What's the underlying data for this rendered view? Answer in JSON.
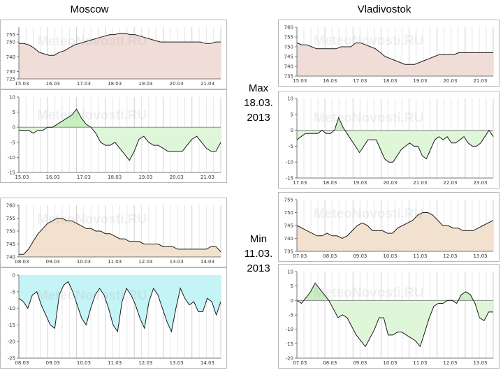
{
  "header": {
    "left_city": "Moscow",
    "right_city": "Vladivostok"
  },
  "labels": {
    "max_title": "Max",
    "max_date": "18.03.",
    "max_year": "2013",
    "min_title": "Min",
    "min_date": "11.03.",
    "min_year": "2013"
  },
  "watermark": "MeteoNovosti.RU",
  "colors": {
    "pressure_fill": "#f1ddd8",
    "pressure_fill_min": "#f3e1cf",
    "temp_pos": "#c8f0c0",
    "temp_neg": "#dff6d9",
    "temp_cold": "#c5f4f6",
    "line": "#1a1a1a"
  },
  "chart_data": [
    {
      "id": "moscow-max-pressure",
      "type": "area",
      "ylim": [
        725,
        760
      ],
      "yticks": [
        725,
        730,
        740,
        750,
        755
      ],
      "ytick_labels": [
        "725",
        "730",
        "740",
        "750",
        "755"
      ],
      "xlabels": [
        "15.03",
        "16.03",
        "17.03",
        "18.03",
        "19.03",
        "20.03",
        "21.03"
      ],
      "values": [
        749,
        749,
        748,
        746,
        743,
        742,
        741,
        741,
        743,
        744,
        746,
        748,
        749,
        750,
        751,
        752,
        753,
        754,
        755,
        755,
        756,
        756,
        755,
        755,
        754,
        753,
        752,
        751,
        750,
        750,
        750,
        750,
        750,
        750,
        750,
        750,
        750,
        749,
        749,
        750,
        750
      ]
    },
    {
      "id": "moscow-max-temp",
      "type": "area",
      "ylim": [
        -15,
        10
      ],
      "yticks": [
        10,
        5,
        0,
        -5,
        -10,
        -15
      ],
      "ytick_labels": [
        "10",
        "5",
        "0",
        "-5",
        "-10",
        "-15"
      ],
      "xlabels": [
        "15.03",
        "16.03",
        "17.03",
        "18.03",
        "19.03",
        "20.03",
        "21.03"
      ],
      "values": [
        -1,
        -1,
        -1,
        -2,
        -1,
        -1,
        0,
        0,
        1,
        2,
        3,
        4,
        6,
        3,
        1,
        0,
        -2,
        -5,
        -6,
        -6,
        -5,
        -7,
        -9,
        -11,
        -8,
        -4,
        -3,
        -5,
        -6,
        -6,
        -7,
        -8,
        -8,
        -8,
        -8,
        -6,
        -4,
        -3,
        -5,
        -7,
        -8,
        -8,
        -5
      ]
    },
    {
      "id": "vlad-max-pressure",
      "type": "area",
      "ylim": [
        735,
        760
      ],
      "yticks": [
        760,
        755,
        750,
        745,
        740,
        735
      ],
      "ytick_labels": [
        "760",
        "755",
        "750",
        "745",
        "740",
        "735"
      ],
      "xlabels": [
        "15.03",
        "16.03",
        "17.03",
        "18.03",
        "19.03",
        "20.03",
        "21.03"
      ],
      "values": [
        752,
        751,
        751,
        750,
        749,
        749,
        749,
        749,
        749,
        750,
        750,
        750,
        752,
        752,
        751,
        750,
        749,
        747,
        745,
        744,
        743,
        742,
        741,
        741,
        741,
        742,
        743,
        744,
        745,
        746,
        746,
        746,
        746,
        747,
        747,
        747,
        747,
        747,
        747,
        747,
        747
      ]
    },
    {
      "id": "vlad-max-temp",
      "type": "area",
      "ylim": [
        -15,
        10
      ],
      "yticks": [
        10,
        5,
        0,
        -5,
        -10,
        -15
      ],
      "ytick_labels": [
        "10",
        "5",
        "0",
        "-5",
        "-10",
        "-15"
      ],
      "xlabels": [
        "17.03",
        "18.03",
        "19.03",
        "20.03",
        "21.03",
        "22.03",
        "23.03"
      ],
      "values": [
        -3,
        -2,
        -1,
        -1,
        -1,
        -1,
        0,
        -1,
        -1,
        0,
        4,
        1,
        -1,
        -3,
        -5,
        -7,
        -5,
        -3,
        -3,
        -3,
        -6,
        -9,
        -10,
        -10,
        -8,
        -6,
        -5,
        -4,
        -5,
        -5,
        -8,
        -9,
        -6,
        -3,
        -2,
        -3,
        -2,
        -4,
        -4,
        -3,
        -2,
        -4,
        -5,
        -5,
        -4,
        -2,
        0,
        -2
      ]
    },
    {
      "id": "moscow-min-pressure",
      "type": "area",
      "ylim": [
        740,
        760
      ],
      "yticks": [
        760,
        755,
        750,
        745,
        740
      ],
      "ytick_labels": [
        "760",
        "755",
        "750",
        "745",
        "740"
      ],
      "xlabels": [
        "08.03",
        "09.03",
        "10.03",
        "11.03",
        "12.03",
        "13.03",
        "14.03"
      ],
      "values": [
        741,
        741,
        743,
        746,
        749,
        751,
        753,
        754,
        755,
        755,
        754,
        754,
        753,
        752,
        751,
        751,
        750,
        750,
        749,
        749,
        748,
        747,
        747,
        746,
        746,
        746,
        745,
        745,
        745,
        745,
        744,
        744,
        744,
        743,
        743,
        743,
        743,
        743,
        743,
        743,
        744,
        744,
        742
      ]
    },
    {
      "id": "moscow-min-temp",
      "type": "area",
      "ylim": [
        -25,
        0
      ],
      "yticks": [
        0,
        -5,
        -10,
        -15,
        -20,
        -25
      ],
      "ytick_labels": [
        "0",
        "-5",
        "-10",
        "-15",
        "-20",
        "-25"
      ],
      "xlabels": [
        "08.03",
        "09.03",
        "10.03",
        "11.03",
        "12.03",
        "13.03",
        "14.03"
      ],
      "values": [
        -7,
        -8,
        -10,
        -6,
        -5,
        -9,
        -12,
        -15,
        -16,
        -6,
        -3,
        -2,
        -5,
        -9,
        -13,
        -15,
        -10,
        -6,
        -4,
        -6,
        -10,
        -15,
        -17,
        -8,
        -4,
        -6,
        -9,
        -13,
        -16,
        -8,
        -4,
        -6,
        -10,
        -14,
        -17,
        -10,
        -4,
        -7,
        -9,
        -8,
        -11,
        -11,
        -7,
        -8,
        -12,
        -8
      ]
    },
    {
      "id": "vlad-min-pressure",
      "type": "area",
      "ylim": [
        735,
        755
      ],
      "yticks": [
        755,
        750,
        745,
        740,
        735
      ],
      "ytick_labels": [
        "755",
        "750",
        "745",
        "740",
        "735"
      ],
      "xlabels": [
        "07.03",
        "08.03",
        "09.03",
        "10.03",
        "11.03",
        "12.03",
        "13.03"
      ],
      "values": [
        745,
        744,
        743,
        742,
        741,
        741,
        742,
        741,
        741,
        740,
        741,
        743,
        745,
        746,
        745,
        743,
        743,
        743,
        742,
        742,
        744,
        745,
        746,
        747,
        749,
        750,
        750,
        749,
        747,
        745,
        745,
        744,
        744,
        743,
        743,
        743,
        744,
        745,
        746,
        747
      ]
    },
    {
      "id": "vlad-min-temp",
      "type": "area",
      "ylim": [
        -20,
        10
      ],
      "yticks": [
        10,
        5,
        0,
        -5,
        -10,
        -15,
        -20
      ],
      "ytick_labels": [
        "10",
        "5",
        "0",
        "-5",
        "-10",
        "-15",
        "-20"
      ],
      "xlabels": [
        "07.03",
        "08.03",
        "09.03",
        "10.03",
        "11.03",
        "12.03",
        "13.03"
      ],
      "values": [
        0,
        -1,
        1,
        3,
        6,
        4,
        2,
        0,
        -3,
        -6,
        -5,
        -6,
        -9,
        -12,
        -14,
        -16,
        -13,
        -10,
        -6,
        -6,
        -12,
        -12,
        -11,
        -11,
        -12,
        -13,
        -14,
        -16,
        -11,
        -6,
        -2,
        -1,
        -1,
        0,
        0,
        -1,
        2,
        3,
        2,
        -1,
        -6,
        -7,
        -4,
        -4
      ]
    }
  ]
}
